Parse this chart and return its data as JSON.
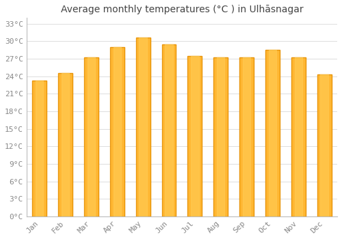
{
  "title": "Average monthly temperatures (°C ) in Ulhāsnagar",
  "months": [
    "Jan",
    "Feb",
    "Mar",
    "Apr",
    "May",
    "Jun",
    "Jul",
    "Aug",
    "Sep",
    "Oct",
    "Nov",
    "Dec"
  ],
  "values": [
    23.3,
    24.5,
    27.2,
    29.0,
    30.6,
    29.5,
    27.5,
    27.2,
    27.3,
    28.5,
    27.2,
    24.3
  ],
  "bar_color_center": "#FFB733",
  "bar_color_edge": "#E8940A",
  "background_color": "#FFFFFF",
  "grid_color": "#DDDDDD",
  "ylim": [
    0,
    34
  ],
  "yticks": [
    0,
    3,
    6,
    9,
    12,
    15,
    18,
    21,
    24,
    27,
    30,
    33
  ],
  "ytick_labels": [
    "0°C",
    "3°C",
    "6°C",
    "9°C",
    "12°C",
    "15°C",
    "18°C",
    "21°C",
    "24°C",
    "27°C",
    "30°C",
    "33°C"
  ],
  "title_fontsize": 10,
  "tick_fontsize": 8,
  "bar_width": 0.55,
  "tick_color": "#888888",
  "title_color": "#444444"
}
